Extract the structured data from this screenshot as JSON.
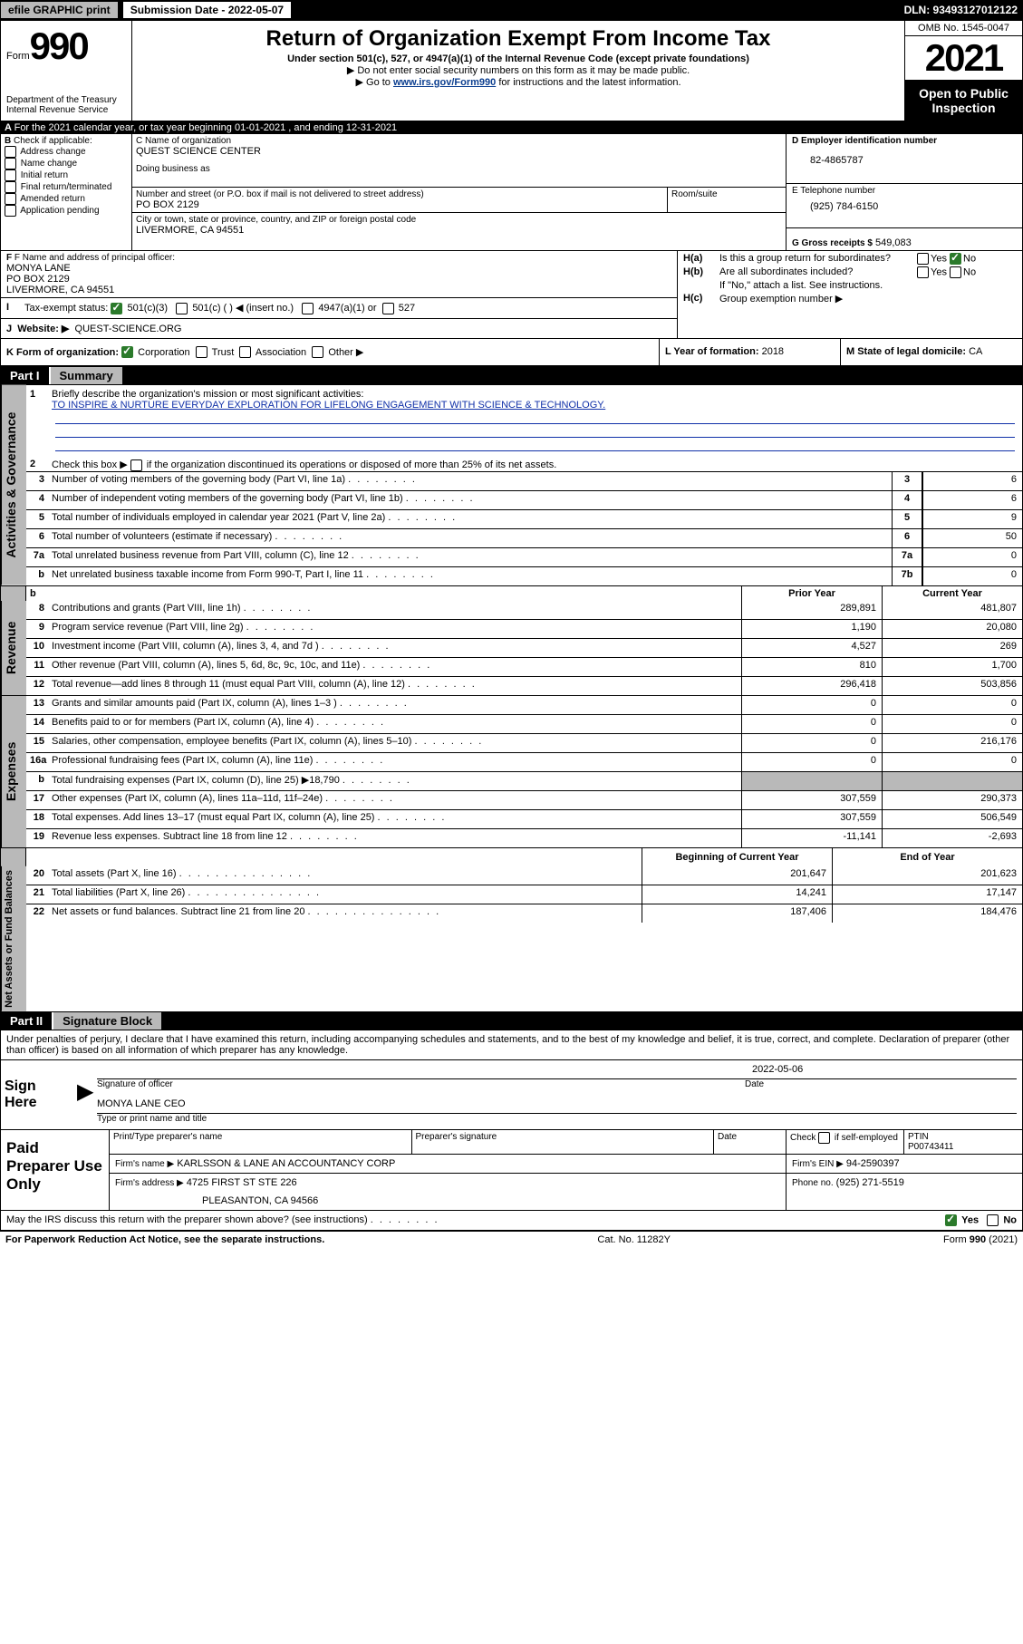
{
  "topbar": {
    "efile": "efile GRAPHIC print",
    "sub_label": "Submission Date - 2022-05-07",
    "dln": "DLN: 93493127012122"
  },
  "header": {
    "form_small": "Form",
    "form_big": "990",
    "dept": "Department of the Treasury",
    "irs": "Internal Revenue Service",
    "title": "Return of Organization Exempt From Income Tax",
    "subtitle": "Under section 501(c), 527, or 4947(a)(1) of the Internal Revenue Code (except private foundations)",
    "note1": "Do not enter social security numbers on this form as it may be made public.",
    "note2_pre": "Go to ",
    "note2_link": "www.irs.gov/Form990",
    "note2_post": " for instructions and the latest information.",
    "omb": "OMB No. 1545-0047",
    "year": "2021",
    "open": "Open to Public Inspection"
  },
  "a_line": "For the 2021 calendar year, or tax year beginning 01-01-2021   , and ending 12-31-2021",
  "b": {
    "title": "Check if applicable:",
    "addr": "Address change",
    "name": "Name change",
    "init": "Initial return",
    "final": "Final return/terminated",
    "amend": "Amended return",
    "app": "Application pending"
  },
  "c": {
    "name_lbl": "C Name of organization",
    "name": "QUEST SCIENCE CENTER",
    "dba_lbl": "Doing business as",
    "street_lbl": "Number and street (or P.O. box if mail is not delivered to street address)",
    "room_lbl": "Room/suite",
    "street": "PO BOX 2129",
    "city_lbl": "City or town, state or province, country, and ZIP or foreign postal code",
    "city": "LIVERMORE, CA  94551"
  },
  "d": {
    "lbl": "D Employer identification number",
    "val": "82-4865787"
  },
  "e": {
    "lbl": "E Telephone number",
    "val": "(925) 784-6150"
  },
  "g": {
    "lbl": "G Gross receipts $",
    "val": "549,083"
  },
  "f": {
    "lbl": "F Name and address of principal officer:",
    "name": "MONYA LANE",
    "street": "PO BOX 2129",
    "city": "LIVERMORE, CA  94551"
  },
  "h": {
    "a_lbl": "Is this a group return for subordinates?",
    "a_pre": "H(a)",
    "b_lbl": "Are all subordinates included?",
    "b_pre": "H(b)",
    "b_note": "If \"No,\" attach a list. See instructions.",
    "c_lbl": "Group exemption number ▶",
    "c_pre": "H(c)",
    "yes": "Yes",
    "no": "No"
  },
  "i": {
    "lbl": "Tax-exempt status:",
    "o1": "501(c)(3)",
    "o2": "501(c) (   ) ◀ (insert no.)",
    "o3": "4947(a)(1) or",
    "o4": "527"
  },
  "j": {
    "lbl": "Website: ▶",
    "val": "QUEST-SCIENCE.ORG"
  },
  "k": {
    "lbl": "K Form of organization:",
    "corp": "Corporation",
    "trust": "Trust",
    "assoc": "Association",
    "other": "Other ▶"
  },
  "l": {
    "lbl": "L Year of formation:",
    "val": "2018"
  },
  "m": {
    "lbl": "M State of legal domicile:",
    "val": "CA"
  },
  "part1": {
    "label": "Part I",
    "title": "Summary",
    "mission_lbl": "Briefly describe the organization's mission or most significant activities:",
    "mission": "TO INSPIRE & NURTURE EVERYDAY EXPLORATION FOR LIFELONG ENGAGEMENT WITH SCIENCE & TECHNOLOGY.",
    "line2": "Check this box ▶        if the organization discontinued its operations or disposed of more than 25% of its net assets.",
    "gov_label": "Activities & Governance",
    "rev_label": "Revenue",
    "exp_label": "Expenses",
    "na_label": "Net Assets or Fund Balances",
    "lines_gov": [
      {
        "n": "3",
        "t": "Number of voting members of the governing body (Part VI, line 1a)",
        "box": "3",
        "v": "6"
      },
      {
        "n": "4",
        "t": "Number of independent voting members of the governing body (Part VI, line 1b)",
        "box": "4",
        "v": "6"
      },
      {
        "n": "5",
        "t": "Total number of individuals employed in calendar year 2021 (Part V, line 2a)",
        "box": "5",
        "v": "9"
      },
      {
        "n": "6",
        "t": "Total number of volunteers (estimate if necessary)",
        "box": "6",
        "v": "50"
      },
      {
        "n": "7a",
        "t": "Total unrelated business revenue from Part VIII, column (C), line 12",
        "box": "7a",
        "v": "0"
      },
      {
        "n": "b",
        "t": "Net unrelated business taxable income from Form 990-T, Part I, line 11",
        "box": "7b",
        "v": "0",
        "indent": true
      }
    ],
    "prior_year": "Prior Year",
    "current_year": "Current Year",
    "lines_rev": [
      {
        "n": "8",
        "t": "Contributions and grants (Part VIII, line 1h)",
        "p": "289,891",
        "c": "481,807"
      },
      {
        "n": "9",
        "t": "Program service revenue (Part VIII, line 2g)",
        "p": "1,190",
        "c": "20,080"
      },
      {
        "n": "10",
        "t": "Investment income (Part VIII, column (A), lines 3, 4, and 7d )",
        "p": "4,527",
        "c": "269"
      },
      {
        "n": "11",
        "t": "Other revenue (Part VIII, column (A), lines 5, 6d, 8c, 9c, 10c, and 11e)",
        "p": "810",
        "c": "1,700"
      },
      {
        "n": "12",
        "t": "Total revenue—add lines 8 through 11 (must equal Part VIII, column (A), line 12)",
        "p": "296,418",
        "c": "503,856"
      }
    ],
    "lines_exp": [
      {
        "n": "13",
        "t": "Grants and similar amounts paid (Part IX, column (A), lines 1–3 )",
        "p": "0",
        "c": "0"
      },
      {
        "n": "14",
        "t": "Benefits paid to or for members (Part IX, column (A), line 4)",
        "p": "0",
        "c": "0"
      },
      {
        "n": "15",
        "t": "Salaries, other compensation, employee benefits (Part IX, column (A), lines 5–10)",
        "p": "0",
        "c": "216,176"
      },
      {
        "n": "16a",
        "t": "Professional fundraising fees (Part IX, column (A), line 11e)",
        "p": "0",
        "c": "0"
      },
      {
        "n": "b",
        "t": "Total fundraising expenses (Part IX, column (D), line 25) ▶18,790",
        "p": "",
        "c": "",
        "indent": true,
        "shadeP": true,
        "shadeC": true
      },
      {
        "n": "17",
        "t": "Other expenses (Part IX, column (A), lines 11a–11d, 11f–24e)",
        "p": "307,559",
        "c": "290,373"
      },
      {
        "n": "18",
        "t": "Total expenses. Add lines 13–17 (must equal Part IX, column (A), line 25)",
        "p": "307,559",
        "c": "506,549"
      },
      {
        "n": "19",
        "t": "Revenue less expenses. Subtract line 18 from line 12",
        "p": "-11,141",
        "c": "-2,693"
      }
    ],
    "beg_year": "Beginning of Current Year",
    "end_year": "End of Year",
    "lines_na": [
      {
        "n": "20",
        "t": "Total assets (Part X, line 16)",
        "p": "201,647",
        "c": "201,623"
      },
      {
        "n": "21",
        "t": "Total liabilities (Part X, line 26)",
        "p": "14,241",
        "c": "17,147"
      },
      {
        "n": "22",
        "t": "Net assets or fund balances. Subtract line 21 from line 20",
        "p": "187,406",
        "c": "184,476"
      }
    ]
  },
  "part2": {
    "label": "Part II",
    "title": "Signature Block",
    "decl": "Under penalties of perjury, I declare that I have examined this return, including accompanying schedules and statements, and to the best of my knowledge and belief, it is true, correct, and complete. Declaration of preparer (other than officer) is based on all information of which preparer has any knowledge.",
    "sign_here": "Sign Here",
    "sig_officer": "Signature of officer",
    "date_lbl": "Date",
    "date_val": "2022-05-06",
    "name_title": "MONYA LANE CEO",
    "type_name": "Type or print name and title",
    "paid": "Paid Preparer Use Only",
    "prep_name_lbl": "Print/Type preparer's name",
    "prep_sig_lbl": "Preparer's signature",
    "check_if": "Check         if self-employed",
    "ptin_lbl": "PTIN",
    "ptin": "P00743411",
    "firm_name_lbl": "Firm's name    ▶",
    "firm_name": "KARLSSON & LANE AN ACCOUNTANCY CORP",
    "firm_ein_lbl": "Firm's EIN ▶",
    "firm_ein": "94-2590397",
    "firm_addr_lbl": "Firm's address ▶",
    "firm_addr1": "4725 FIRST ST STE 226",
    "firm_addr2": "PLEASANTON, CA  94566",
    "phone_lbl": "Phone no.",
    "phone": "(925) 271-5519",
    "may_irs": "May the IRS discuss this return with the preparer shown above? (see instructions)"
  },
  "footer": {
    "left": "For Paperwork Reduction Act Notice, see the separate instructions.",
    "mid": "Cat. No. 11282Y",
    "right_pre": "Form ",
    "right_bold": "990",
    "right_post": " (2021)"
  }
}
